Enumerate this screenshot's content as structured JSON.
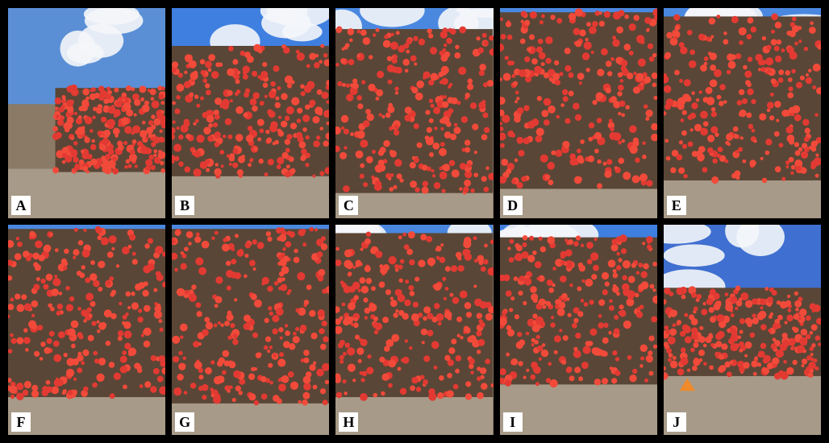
{
  "panels": [
    {
      "id": "A",
      "label": "A",
      "sky": "#5a8fd6",
      "pile_top": 0.38,
      "pile_bottom": 0.78,
      "cloud": true,
      "fill": 0.7
    },
    {
      "id": "B",
      "label": "B",
      "sky": "#3f7fe0",
      "pile_top": 0.18,
      "pile_bottom": 0.8,
      "cloud": true,
      "fill": 1.0
    },
    {
      "id": "C",
      "label": "C",
      "sky": "#4a88e0",
      "pile_top": 0.1,
      "pile_bottom": 0.88,
      "cloud": true,
      "fill": 1.0
    },
    {
      "id": "D",
      "label": "D",
      "sky": "#4a88e0",
      "pile_top": 0.02,
      "pile_bottom": 0.86,
      "cloud": false,
      "fill": 1.0
    },
    {
      "id": "E",
      "label": "E",
      "sky": "#4a88e0",
      "pile_top": 0.04,
      "pile_bottom": 0.82,
      "cloud": true,
      "fill": 1.0
    },
    {
      "id": "F",
      "label": "F",
      "sky": "#4a88e0",
      "pile_top": 0.02,
      "pile_bottom": 0.82,
      "cloud": false,
      "fill": 1.0
    },
    {
      "id": "G",
      "label": "G",
      "sky": "#4a88e0",
      "pile_top": 0.02,
      "pile_bottom": 0.85,
      "cloud": false,
      "fill": 1.0
    },
    {
      "id": "H",
      "label": "H",
      "sky": "#4a88e0",
      "pile_top": 0.04,
      "pile_bottom": 0.82,
      "cloud": true,
      "fill": 1.0
    },
    {
      "id": "I",
      "label": "I",
      "sky": "#3f7fe0",
      "pile_top": 0.06,
      "pile_bottom": 0.76,
      "cloud": true,
      "fill": 1.0
    },
    {
      "id": "J",
      "label": "J",
      "sky": "#3f6fd0",
      "pile_top": 0.3,
      "pile_bottom": 0.72,
      "cloud": true,
      "fill": 1.0
    }
  ],
  "colors": {
    "log_face": "#e23a32",
    "log_face_alt": "#f24a3a",
    "bark": "#5a4636",
    "ground": "#a79a88",
    "cloud": "#f4f6fa"
  }
}
